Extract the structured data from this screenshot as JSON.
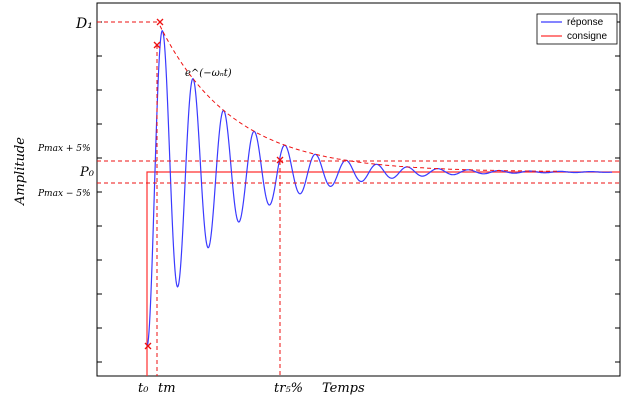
{
  "chart_data": {
    "type": "line",
    "xlabel": "Temps",
    "ylabel": "Amplitude",
    "grid": false,
    "legend_position": "top-right",
    "colors": {
      "response": "#3a3aff",
      "setpoint": "#ff3030",
      "guides": "#ee1111",
      "envelope": "#ee1111",
      "markers": "#ee1111"
    },
    "x_tick_labels": {
      "t0": "t₀",
      "tm": "tm",
      "tr": "tr₅%"
    },
    "y_tick_labels": {
      "d1": "D₁",
      "pmax_plus": "Pmax + 5%",
      "p0": "P₀",
      "pmax_minus": "Pmax − 5%"
    },
    "envelope_label": "e^(−ωₙt)",
    "series": [
      {
        "name": "réponse",
        "description": "underdamped second-order step response starting at t₀, overshooting to D₁, settling toward P₀"
      },
      {
        "name": "consigne",
        "description": "step from 0 to P₀ at t₀"
      }
    ]
  }
}
